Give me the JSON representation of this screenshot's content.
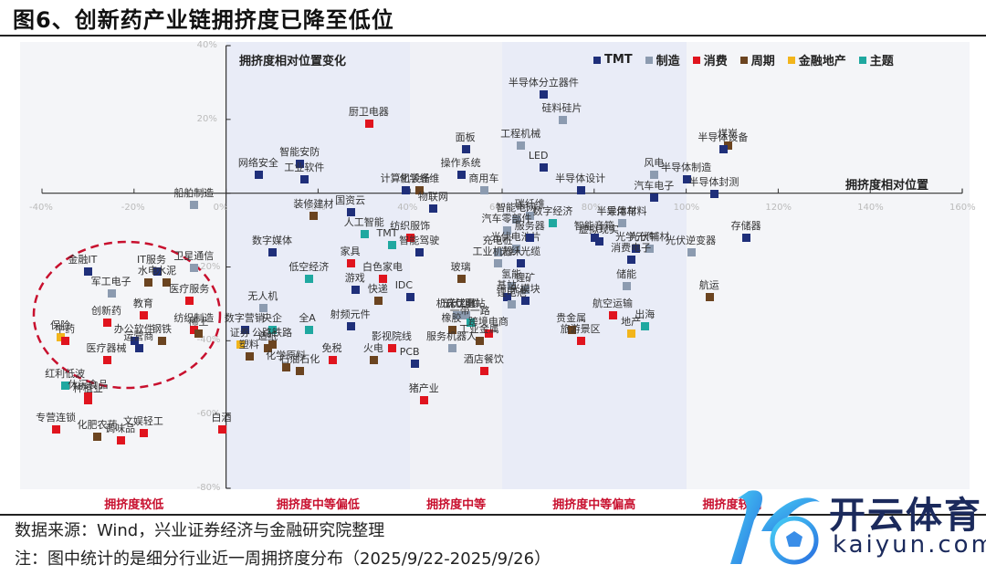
{
  "header": {
    "title": "图6、创新药产业链拥挤度已降至低位"
  },
  "footer": {
    "source": "数据来源：Wind，兴业证券经济与金融研究院整理",
    "note": "注：图中统计的是细分行业近一周拥挤度分布（2025/9/22-2025/9/26）"
  },
  "watermark": {
    "cn": "开云体育",
    "en": "kaiyun.com"
  },
  "chart_data": {
    "type": "scatter",
    "title": "图6、创新药产业链拥挤度已降至低位",
    "xlabel": "拥挤度相对位置",
    "ylabel": "拥挤度相对位置变化",
    "xlim": [
      -0.4,
      1.6
    ],
    "ylim": [
      -0.8,
      0.4
    ],
    "x_ticks": [
      "-40%",
      "-20%",
      "0%",
      "20%",
      "40%",
      "60%",
      "80%",
      "100%",
      "120%",
      "140%",
      "160%"
    ],
    "y_ticks": [
      "40%",
      "20%",
      "0%",
      "-20%",
      "-40%",
      "-60%",
      "-80%"
    ],
    "grid": false,
    "legend_position": "top-right",
    "legend": [
      {
        "name": "TMT",
        "color": "#1f2f7a"
      },
      {
        "name": "制造",
        "color": "#8c9bb0"
      },
      {
        "name": "消费",
        "color": "#e0141e"
      },
      {
        "name": "周期",
        "color": "#6b4420"
      },
      {
        "name": "金融地产",
        "color": "#f2b51c"
      },
      {
        "name": "主题",
        "color": "#1fa8a0"
      }
    ],
    "zones": [
      {
        "label": "拥挤度较低",
        "x_range": [
          -0.4,
          0.0
        ]
      },
      {
        "label": "拥挤度中等偏低",
        "x_range": [
          0.0,
          0.4
        ]
      },
      {
        "label": "拥挤度中等",
        "x_range": [
          0.4,
          0.6
        ]
      },
      {
        "label": "拥挤度中等偏高",
        "x_range": [
          0.6,
          1.0
        ]
      },
      {
        "label": "拥挤度较高",
        "x_range": [
          1.0,
          1.6
        ]
      }
    ],
    "annotation": "red dashed ellipse around the low-crowding cluster (创新药产业链)",
    "points": [
      {
        "name": "半导体分立器件",
        "group": "TMT",
        "x": 0.69,
        "y": 0.27
      },
      {
        "name": "硅料硅片",
        "group": "制造",
        "x": 0.73,
        "y": 0.2
      },
      {
        "name": "厨卫电器",
        "group": "消费",
        "x": 0.31,
        "y": 0.19
      },
      {
        "name": "工程机械",
        "group": "制造",
        "x": 0.64,
        "y": 0.13
      },
      {
        "name": "面板",
        "group": "TMT",
        "x": 0.52,
        "y": 0.12
      },
      {
        "name": "煤炭",
        "group": "周期",
        "x": 1.09,
        "y": 0.13
      },
      {
        "name": "半导体设备",
        "group": "TMT",
        "x": 1.08,
        "y": 0.12
      },
      {
        "name": "网络安全",
        "group": "TMT",
        "x": 0.07,
        "y": 0.05
      },
      {
        "name": "智能安防",
        "group": "TMT",
        "x": 0.16,
        "y": 0.08
      },
      {
        "name": "工业软件",
        "group": "TMT",
        "x": 0.17,
        "y": 0.04
      },
      {
        "name": "操作系统",
        "group": "TMT",
        "x": 0.51,
        "y": 0.05
      },
      {
        "name": "LED",
        "group": "TMT",
        "x": 0.69,
        "y": 0.07
      },
      {
        "name": "风电",
        "group": "制造",
        "x": 0.93,
        "y": 0.05
      },
      {
        "name": "半导体制造",
        "group": "TMT",
        "x": 1.0,
        "y": 0.04
      },
      {
        "name": "半导体设计",
        "group": "TMT",
        "x": 0.77,
        "y": 0.01
      },
      {
        "name": "计算机设备",
        "group": "TMT",
        "x": 0.39,
        "y": 0.01
      },
      {
        "name": "化学纤维",
        "group": "周期",
        "x": 0.42,
        "y": 0.01
      },
      {
        "name": "商用车",
        "group": "制造",
        "x": 0.56,
        "y": 0.01
      },
      {
        "name": "汽车电子",
        "group": "TMT",
        "x": 0.93,
        "y": -0.01
      },
      {
        "name": "半导体封测",
        "group": "TMT",
        "x": 1.06,
        "y": 0.0
      },
      {
        "name": "船舶制造",
        "group": "制造",
        "x": -0.07,
        "y": -0.03
      },
      {
        "name": "国资云",
        "group": "TMT",
        "x": 0.27,
        "y": -0.05
      },
      {
        "name": "装修建材",
        "group": "周期",
        "x": 0.19,
        "y": -0.06
      },
      {
        "name": "物联网",
        "group": "TMT",
        "x": 0.45,
        "y": -0.04
      },
      {
        "name": "智能电网",
        "group": "制造",
        "x": 0.63,
        "y": -0.07
      },
      {
        "name": "碳纤维",
        "group": "制造",
        "x": 0.66,
        "y": -0.06
      },
      {
        "name": "半导体材料",
        "group": "制造",
        "x": 0.86,
        "y": -0.08
      },
      {
        "name": "乘用车",
        "group": "制造",
        "x": 0.86,
        "y": -0.08
      },
      {
        "name": "汽车零部件",
        "group": "制造",
        "x": 0.61,
        "y": -0.1
      },
      {
        "name": "数字经济",
        "group": "主题",
        "x": 0.71,
        "y": -0.08
      },
      {
        "name": "纺织服饰",
        "group": "消费",
        "x": 0.4,
        "y": -0.12
      },
      {
        "name": "人工智能",
        "group": "主题",
        "x": 0.3,
        "y": -0.11
      },
      {
        "name": "TMT",
        "group": "主题",
        "x": 0.36,
        "y": -0.14
      },
      {
        "name": "智能驾驶",
        "group": "TMT",
        "x": 0.42,
        "y": -0.16
      },
      {
        "name": "充电桩",
        "group": "制造",
        "x": 0.59,
        "y": -0.16
      },
      {
        "name": "光伏电池片",
        "group": "制造",
        "x": 0.63,
        "y": -0.15
      },
      {
        "name": "服务器",
        "group": "TMT",
        "x": 0.66,
        "y": -0.12
      },
      {
        "name": "智能音箱",
        "group": "TMT",
        "x": 0.8,
        "y": -0.12
      },
      {
        "name": "虚拟现实",
        "group": "TMT",
        "x": 0.81,
        "y": -0.13
      },
      {
        "name": "光学元件",
        "group": "TMT",
        "x": 0.89,
        "y": -0.15
      },
      {
        "name": "光伏辅材",
        "group": "制造",
        "x": 0.92,
        "y": -0.15
      },
      {
        "name": "存储器",
        "group": "TMT",
        "x": 1.13,
        "y": -0.12
      },
      {
        "name": "光伏逆变器",
        "group": "制造",
        "x": 1.01,
        "y": -0.16
      },
      {
        "name": "数字媒体",
        "group": "TMT",
        "x": 0.1,
        "y": -0.16
      },
      {
        "name": "工业机器人",
        "group": "制造",
        "x": 0.59,
        "y": -0.19
      },
      {
        "name": "光纤光缆",
        "group": "TMT",
        "x": 0.64,
        "y": -0.19
      },
      {
        "name": "消费电子",
        "group": "TMT",
        "x": 0.88,
        "y": -0.18
      },
      {
        "name": "低空经济",
        "group": "主题",
        "x": 0.18,
        "y": -0.23
      },
      {
        "name": "家具",
        "group": "消费",
        "x": 0.27,
        "y": -0.19
      },
      {
        "name": "白色家电",
        "group": "消费",
        "x": 0.34,
        "y": -0.23
      },
      {
        "name": "玻璃",
        "group": "周期",
        "x": 0.51,
        "y": -0.23
      },
      {
        "name": "氢能",
        "group": "制造",
        "x": 0.62,
        "y": -0.25
      },
      {
        "name": "锂矿",
        "group": "制造",
        "x": 0.65,
        "y": -0.26
      },
      {
        "name": "储能",
        "group": "制造",
        "x": 0.87,
        "y": -0.25
      },
      {
        "name": "游戏",
        "group": "TMT",
        "x": 0.28,
        "y": -0.26
      },
      {
        "name": "IDC",
        "group": "TMT",
        "x": 0.4,
        "y": -0.28
      },
      {
        "name": "快递",
        "group": "周期",
        "x": 0.33,
        "y": -0.29
      },
      {
        "name": "基站",
        "group": "TMT",
        "x": 0.61,
        "y": -0.28
      },
      {
        "name": "光模块",
        "group": "TMT",
        "x": 0.65,
        "y": -0.29
      },
      {
        "name": "锂电池",
        "group": "制造",
        "x": 0.62,
        "y": -0.3
      },
      {
        "name": "航运",
        "group": "周期",
        "x": 1.05,
        "y": -0.28
      },
      {
        "name": "无人机",
        "group": "制造",
        "x": 0.08,
        "y": -0.31
      },
      {
        "name": "机床工具",
        "group": "制造",
        "x": 0.5,
        "y": -0.33
      },
      {
        "name": "光伏组件",
        "group": "制造",
        "x": 0.51,
        "y": -0.33
      },
      {
        "name": "光伏电站",
        "group": "制造",
        "x": 0.52,
        "y": -0.33
      },
      {
        "name": "航空运输",
        "group": "消费",
        "x": 0.84,
        "y": -0.33
      },
      {
        "name": "射频元件",
        "group": "TMT",
        "x": 0.27,
        "y": -0.36
      },
      {
        "name": "数字营销",
        "group": "TMT",
        "x": 0.04,
        "y": -0.37
      },
      {
        "name": "央企",
        "group": "主题",
        "x": 0.1,
        "y": -0.37
      },
      {
        "name": "全A",
        "group": "主题",
        "x": 0.18,
        "y": -0.37
      },
      {
        "name": "一带一路",
        "group": "主题",
        "x": 0.53,
        "y": -0.35
      },
      {
        "name": "橡胶",
        "group": "周期",
        "x": 0.49,
        "y": -0.37
      },
      {
        "name": "跨境电商",
        "group": "消费",
        "x": 0.57,
        "y": -0.38
      },
      {
        "name": "贵金属",
        "group": "周期",
        "x": 0.75,
        "y": -0.37
      },
      {
        "name": "出海",
        "group": "主题",
        "x": 0.91,
        "y": -0.36
      },
      {
        "name": "地产",
        "group": "金融地产",
        "x": 0.88,
        "y": -0.38
      },
      {
        "name": "旅游景区",
        "group": "消费",
        "x": 0.77,
        "y": -0.4
      },
      {
        "name": "工业金属",
        "group": "周期",
        "x": 0.55,
        "y": -0.4
      },
      {
        "name": "服务机器人",
        "group": "制造",
        "x": 0.49,
        "y": -0.42
      },
      {
        "name": "证券",
        "group": "金融地产",
        "x": 0.03,
        "y": -0.41
      },
      {
        "name": "公路铁路",
        "group": "周期",
        "x": 0.1,
        "y": -0.41
      },
      {
        "name": "造纸",
        "group": "周期",
        "x": 0.09,
        "y": -0.42
      },
      {
        "name": "塑料",
        "group": "周期",
        "x": 0.05,
        "y": -0.44
      },
      {
        "name": "化学原料",
        "group": "周期",
        "x": 0.13,
        "y": -0.47
      },
      {
        "name": "石油石化",
        "group": "周期",
        "x": 0.16,
        "y": -0.48
      },
      {
        "name": "免税",
        "group": "消费",
        "x": 0.23,
        "y": -0.45
      },
      {
        "name": "火电",
        "group": "周期",
        "x": 0.32,
        "y": -0.45
      },
      {
        "name": "影视院线",
        "group": "消费",
        "x": 0.36,
        "y": -0.42
      },
      {
        "name": "PCB",
        "group": "TMT",
        "x": 0.41,
        "y": -0.46
      },
      {
        "name": "酒店餐饮",
        "group": "消费",
        "x": 0.56,
        "y": -0.48
      },
      {
        "name": "猪产业",
        "group": "消费",
        "x": 0.43,
        "y": -0.56
      },
      {
        "name": "卫星通信",
        "group": "制造",
        "x": -0.07,
        "y": -0.2
      },
      {
        "name": "IT服务",
        "group": "TMT",
        "x": -0.15,
        "y": -0.21
      },
      {
        "name": "金融IT",
        "group": "TMT",
        "x": -0.3,
        "y": -0.21
      },
      {
        "name": "水电",
        "group": "周期",
        "x": -0.17,
        "y": -0.24
      },
      {
        "name": "水泥",
        "group": "周期",
        "x": -0.13,
        "y": -0.24
      },
      {
        "name": "军工电子",
        "group": "制造",
        "x": -0.25,
        "y": -0.27
      },
      {
        "name": "医疗服务",
        "group": "消费",
        "x": -0.08,
        "y": -0.29
      },
      {
        "name": "教育",
        "group": "消费",
        "x": -0.18,
        "y": -0.33
      },
      {
        "name": "纺织制造",
        "group": "消费",
        "x": -0.07,
        "y": -0.37
      },
      {
        "name": "稀土",
        "group": "周期",
        "x": -0.06,
        "y": -0.38
      },
      {
        "name": "创新药",
        "group": "消费",
        "x": -0.26,
        "y": -0.35
      },
      {
        "name": "钢铁",
        "group": "周期",
        "x": -0.14,
        "y": -0.4
      },
      {
        "name": "办公软件",
        "group": "TMT",
        "x": -0.2,
        "y": -0.4
      },
      {
        "name": "运营商",
        "group": "TMT",
        "x": -0.19,
        "y": -0.42
      },
      {
        "name": "保险",
        "group": "金融地产",
        "x": -0.36,
        "y": -0.39
      },
      {
        "name": "中药",
        "group": "消费",
        "x": -0.35,
        "y": -0.4
      },
      {
        "name": "医疗器械",
        "group": "消费",
        "x": -0.26,
        "y": -0.45
      },
      {
        "name": "红利低波",
        "group": "主题",
        "x": -0.35,
        "y": -0.52
      },
      {
        "name": "休闲食品",
        "group": "消费",
        "x": -0.3,
        "y": -0.55
      },
      {
        "name": "种植业",
        "group": "消费",
        "x": -0.3,
        "y": -0.56
      },
      {
        "name": "专营连锁",
        "group": "消费",
        "x": -0.37,
        "y": -0.64
      },
      {
        "name": "化肥农药",
        "group": "周期",
        "x": -0.28,
        "y": -0.66
      },
      {
        "name": "调味品",
        "group": "消费",
        "x": -0.23,
        "y": -0.67
      },
      {
        "name": "文娱轻工",
        "group": "消费",
        "x": -0.18,
        "y": -0.65
      },
      {
        "name": "白酒",
        "group": "消费",
        "x": -0.01,
        "y": -0.64
      }
    ]
  }
}
